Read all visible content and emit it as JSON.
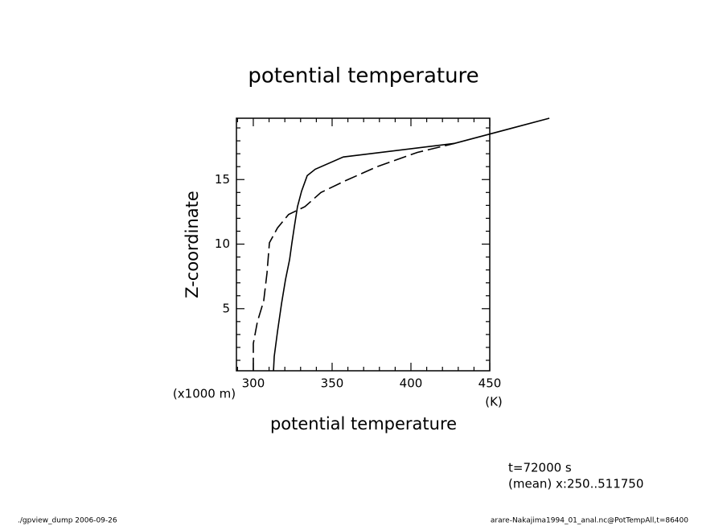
{
  "chart_data": {
    "type": "line",
    "title": "potential temperature",
    "xlabel": "potential temperature",
    "xunit": "(K)",
    "ylabel": "Z-coordinate",
    "yunit": "(x1000 m)",
    "xlim": [
      289.3,
      450
    ],
    "xticks": [
      300,
      350,
      400,
      450
    ],
    "xminorticks": [
      290,
      310,
      320,
      330,
      340,
      360,
      370,
      380,
      390,
      410,
      420,
      430,
      440
    ],
    "ylim": [
      0.19,
      19.75
    ],
    "yticks": [
      5,
      10,
      15
    ],
    "yminorticks": [
      1,
      2,
      3,
      4,
      6,
      7,
      8,
      9,
      11,
      12,
      13,
      14,
      16,
      17,
      18,
      19
    ],
    "series": [
      {
        "color": "#000000",
        "dash": false,
        "x": [
          312.8,
          313.3,
          315.3,
          317.9,
          320.4,
          323,
          324.5,
          326,
          328,
          330.6,
          334.2,
          339.3,
          357.1,
          427.6,
          487.8
        ],
        "values": [
          0.2,
          1.3,
          3.2,
          5.4,
          7.25,
          8.8,
          10.1,
          11.3,
          12.9,
          14.1,
          15.3,
          15.8,
          16.75,
          17.8,
          19.75
        ]
      },
      {
        "color": "#000000",
        "dash": true,
        "x": [
          300,
          300,
          302.6,
          306.6,
          308.7,
          310.2,
          315.3,
          322.4,
          332.7,
          342.9,
          358.2,
          378.6,
          404.1,
          427.6
        ],
        "values": [
          0.2,
          2.3,
          4,
          5.6,
          7.75,
          10.1,
          11.25,
          12.3,
          12.9,
          14,
          14.9,
          16,
          17.1,
          17.8
        ]
      }
    ],
    "annotations": [
      "t=72000 s",
      "(mean) x:250..511750"
    ],
    "footer_left": "./gpview_dump  2006-09-26",
    "footer_right": "arare-Nakajima1994_01_anal.nc@PotTempAll,t=86400"
  }
}
